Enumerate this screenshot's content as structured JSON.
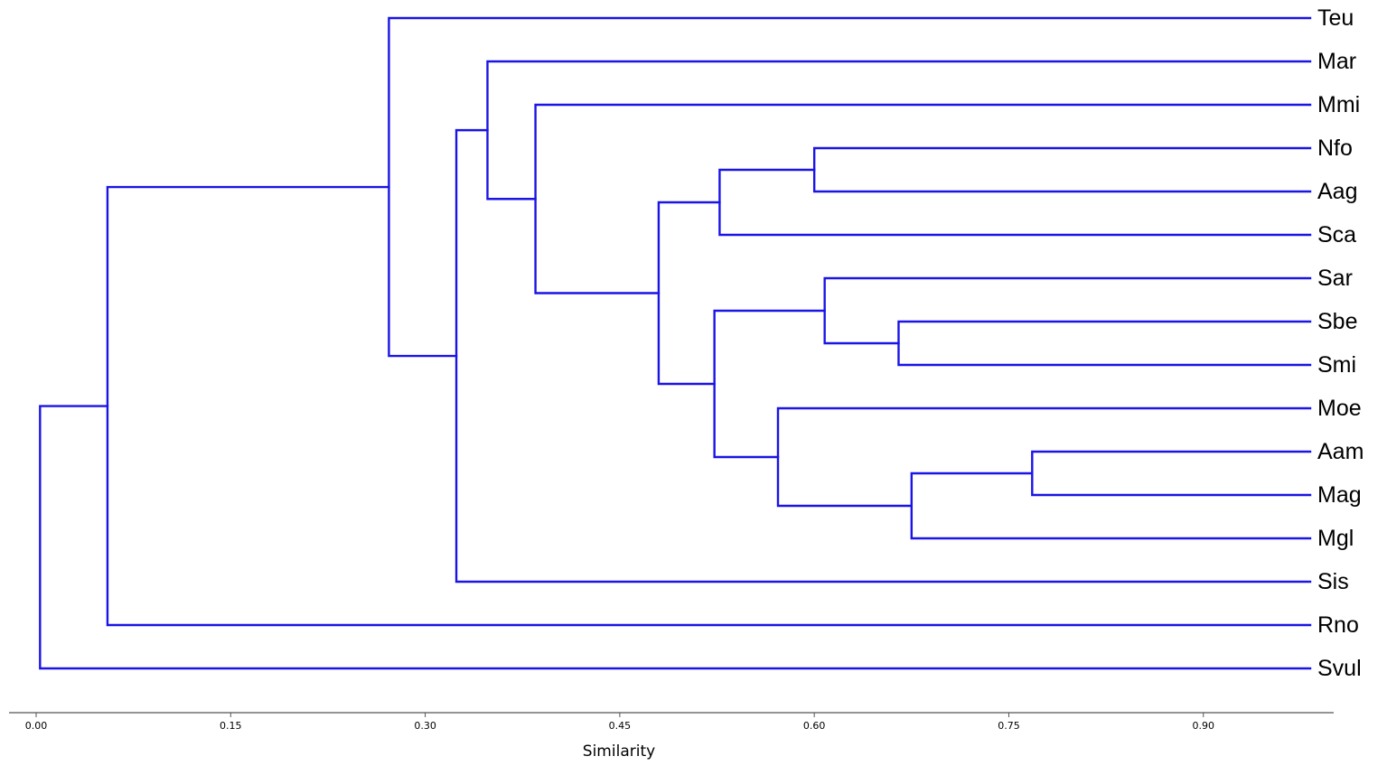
{
  "chart_data": {
    "type": "dendrogram",
    "orientation": "leaves-right",
    "xlabel": "Similarity",
    "xlim": [
      -0.01,
      0.98
    ],
    "xticks": [
      0.0,
      0.15,
      0.3,
      0.45,
      0.6,
      0.75,
      0.9
    ],
    "xtick_labels": [
      "0.00",
      "0.15",
      "0.30",
      "0.45",
      "0.60",
      "0.75",
      "0.90"
    ],
    "line_color": "#1a14e6",
    "leaves": [
      "Teu",
      "Mar",
      "Mmi",
      "Nfo",
      "Aag",
      "Sca",
      "Sar",
      "Sbe",
      "Smi",
      "Moe",
      "Aam",
      "Mag",
      "Mgl",
      "Sis",
      "Rno",
      "Svul"
    ],
    "merges": [
      {
        "id": "n1",
        "left": "Nfo",
        "right": "Aag",
        "similarity": 0.6
      },
      {
        "id": "n2",
        "left": "n1",
        "right": "Sca",
        "similarity": 0.527
      },
      {
        "id": "n3",
        "left": "Sbe",
        "right": "Smi",
        "similarity": 0.665
      },
      {
        "id": "n4",
        "left": "Sar",
        "right": "n3",
        "similarity": 0.608
      },
      {
        "id": "n5",
        "left": "Aam",
        "right": "Mag",
        "similarity": 0.768
      },
      {
        "id": "n6",
        "left": "n5",
        "right": "Mgl",
        "similarity": 0.675
      },
      {
        "id": "n7",
        "left": "Moe",
        "right": "n6",
        "similarity": 0.572
      },
      {
        "id": "n8",
        "left": "n4",
        "right": "n7",
        "similarity": 0.523
      },
      {
        "id": "n9",
        "left": "n2",
        "right": "n8",
        "similarity": 0.48
      },
      {
        "id": "n10",
        "left": "Mmi",
        "right": "n9",
        "similarity": 0.385
      },
      {
        "id": "n11",
        "left": "Mar",
        "right": "n10",
        "similarity": 0.348
      },
      {
        "id": "n12",
        "left": "n11",
        "right": "Sis",
        "similarity": 0.324
      },
      {
        "id": "n13",
        "left": "Teu",
        "right": "n12",
        "similarity": 0.272
      },
      {
        "id": "n14",
        "left": "n13",
        "right": "Rno",
        "similarity": 0.055
      },
      {
        "id": "n15",
        "left": "n14",
        "right": "Svul",
        "similarity": 0.003
      }
    ]
  }
}
